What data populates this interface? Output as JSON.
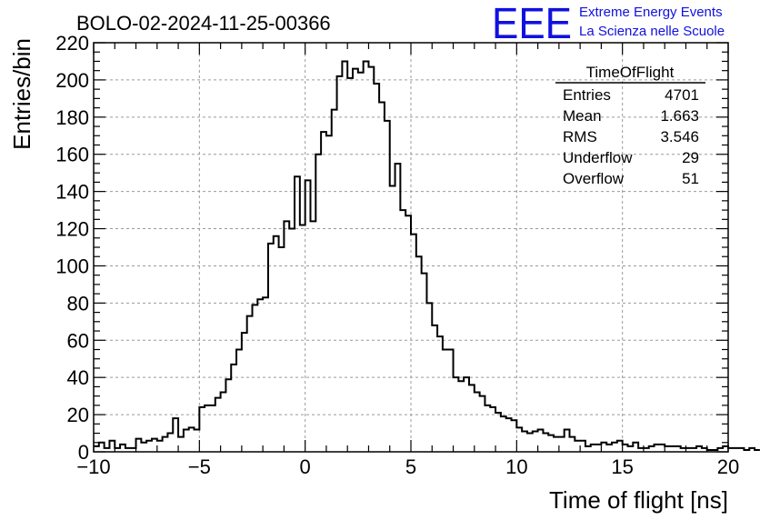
{
  "logo": {
    "mark": "EEE",
    "line1": "Extreme Energy Events",
    "line2": "La Scienza nelle Scuole",
    "color": "#1010e0"
  },
  "stats_box": {
    "name": "TimeOfFlight",
    "rows": [
      {
        "label": "Entries",
        "value": "4701"
      },
      {
        "label": "Mean",
        "value": "1.663"
      },
      {
        "label": "RMS",
        "value": "3.546"
      },
      {
        "label": "Underflow",
        "value": "29"
      },
      {
        "label": "Overflow",
        "value": "51"
      }
    ]
  },
  "chart_data": {
    "type": "bar",
    "style": "step-histogram",
    "title": "BOLO-02-2024-11-25-00366",
    "xlabel": "Time of flight [ns]",
    "ylabel": "Entries/bin",
    "xlim": [
      -10,
      20
    ],
    "ylim": [
      0,
      220
    ],
    "x_ticks": [
      -10,
      -5,
      0,
      5,
      10,
      15,
      20
    ],
    "y_ticks": [
      0,
      20,
      40,
      60,
      80,
      100,
      120,
      140,
      160,
      180,
      200,
      220
    ],
    "grid": true,
    "line_color": "#000000",
    "bin_width": 0.25,
    "bin_start": -10,
    "values": [
      3,
      5,
      2,
      6,
      2,
      4,
      2,
      2,
      7,
      5,
      6,
      7,
      6,
      8,
      10,
      18,
      8,
      12,
      13,
      12,
      24,
      25,
      25,
      29,
      32,
      39,
      47,
      55,
      64,
      73,
      79,
      82,
      83,
      112,
      116,
      110,
      124,
      120,
      148,
      122,
      146,
      124,
      160,
      172,
      170,
      184,
      202,
      210,
      201,
      206,
      204,
      210,
      207,
      198,
      188,
      178,
      143,
      155,
      130,
      127,
      117,
      105,
      96,
      80,
      68,
      62,
      55,
      55,
      40,
      38,
      40,
      36,
      32,
      30,
      25,
      24,
      21,
      19,
      18,
      17,
      13,
      11,
      10,
      11,
      12,
      10,
      9,
      8,
      8,
      12,
      8,
      6,
      6,
      3,
      4,
      4,
      5,
      4,
      5,
      6,
      4,
      3,
      5,
      2,
      2,
      3,
      4,
      4,
      3,
      3,
      3,
      2,
      2,
      2,
      3,
      2,
      1,
      1,
      2,
      3,
      2,
      2,
      2,
      1,
      2,
      1
    ]
  }
}
